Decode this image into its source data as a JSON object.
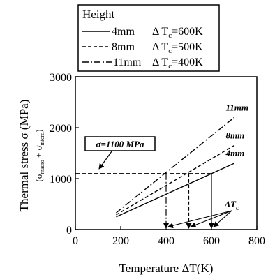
{
  "chart_data": {
    "type": "line",
    "xlabel": "Temperature  ΔT(K)",
    "ylabel_main": "Thermal stress σ (MPa)",
    "ylabel_sub": "(σ macro + σ micro)",
    "xlim": [
      0,
      800
    ],
    "ylim": [
      0,
      3000
    ],
    "x_ticks": [
      "0",
      "200",
      "400",
      "600",
      "800"
    ],
    "y_ticks": [
      "0",
      "1000",
      "2000",
      "3000"
    ],
    "grid": false,
    "legend": {
      "title": "Height",
      "placement": "top-left, above plot",
      "entries": [
        {
          "height": "4mm",
          "dt": "Δ Tₑ=600K",
          "dash": "solid"
        },
        {
          "height": "8mm",
          "dt": "Δ Tₑ=500K",
          "dash": "dashed"
        },
        {
          "height": "11mm",
          "dt": "Δ Tₑ=400K",
          "dash": "dashdot"
        }
      ]
    },
    "series": [
      {
        "name": "4mm",
        "x": [
          180,
          700
        ],
        "y": [
          250,
          1300
        ],
        "dash": "solid",
        "end_label": "4mm"
      },
      {
        "name": "8mm",
        "x": [
          180,
          700
        ],
        "y": [
          290,
          1650
        ],
        "dash": "dashed",
        "end_label": "8mm"
      },
      {
        "name": "11mm",
        "x": [
          180,
          700
        ],
        "y": [
          330,
          2200
        ],
        "dash": "dashdot",
        "end_label": "11mm"
      }
    ],
    "reference_line": {
      "y": 1100,
      "x_from": 0,
      "x_to": 600,
      "label": "σ=1100 MPa"
    },
    "drop_lines_x": [
      400,
      500,
      600
    ],
    "annotation_dtc": "ΔTₑ"
  }
}
